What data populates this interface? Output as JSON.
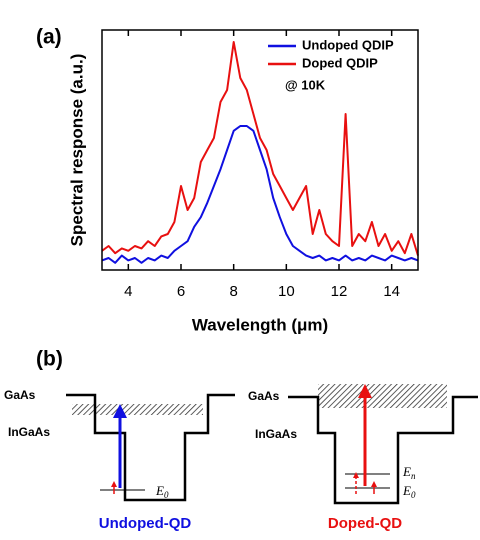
{
  "chart_data": {
    "type": "line",
    "label": "(a)",
    "xlabel": "Wavelength (μm)",
    "ylabel": "Spectral response (a.u.)",
    "annotation": "@ 10K",
    "x": [
      3,
      3.25,
      3.5,
      3.75,
      4,
      4.25,
      4.5,
      4.75,
      5,
      5.25,
      5.5,
      5.75,
      6,
      6.25,
      6.5,
      6.75,
      7,
      7.25,
      7.5,
      7.75,
      8,
      8.25,
      8.5,
      8.75,
      9,
      9.25,
      9.5,
      9.75,
      10,
      10.25,
      10.5,
      10.75,
      11,
      11.25,
      11.5,
      11.75,
      12,
      12.25,
      12.5,
      12.75,
      13,
      13.25,
      13.5,
      13.75,
      14,
      14.25,
      14.5,
      14.75,
      15
    ],
    "series": [
      {
        "name": "Undoped QDIP",
        "color": "#1010e0",
        "values": [
          0.04,
          0.05,
          0.03,
          0.06,
          0.04,
          0.05,
          0.03,
          0.05,
          0.04,
          0.06,
          0.05,
          0.08,
          0.1,
          0.12,
          0.18,
          0.22,
          0.28,
          0.35,
          0.42,
          0.5,
          0.58,
          0.6,
          0.6,
          0.58,
          0.5,
          0.42,
          0.3,
          0.22,
          0.15,
          0.1,
          0.08,
          0.06,
          0.05,
          0.06,
          0.04,
          0.05,
          0.04,
          0.06,
          0.04,
          0.05,
          0.04,
          0.06,
          0.05,
          0.04,
          0.06,
          0.05,
          0.04,
          0.05,
          0.04
        ]
      },
      {
        "name": "Doped QDIP",
        "color": "#e81010",
        "values": [
          0.08,
          0.1,
          0.07,
          0.09,
          0.08,
          0.1,
          0.09,
          0.12,
          0.1,
          0.14,
          0.15,
          0.2,
          0.35,
          0.25,
          0.3,
          0.45,
          0.5,
          0.55,
          0.7,
          0.75,
          0.95,
          0.8,
          0.75,
          0.65,
          0.55,
          0.5,
          0.4,
          0.35,
          0.3,
          0.25,
          0.3,
          0.35,
          0.15,
          0.25,
          0.15,
          0.12,
          0.1,
          0.65,
          0.1,
          0.15,
          0.12,
          0.2,
          0.1,
          0.15,
          0.08,
          0.12,
          0.07,
          0.15,
          0.06
        ]
      }
    ],
    "xlim": [
      3,
      15
    ],
    "ylim": [
      0,
      1
    ],
    "xticks": [
      4,
      6,
      8,
      10,
      12,
      14
    ],
    "grid": false,
    "legend": "upper right"
  },
  "diagram": {
    "label": "(b)",
    "left": {
      "barrier": "GaAs",
      "well": "InGaAs",
      "level": {
        "symbol": "E",
        "subscript": "0"
      },
      "caption": "Undoped-QD"
    },
    "right": {
      "barrier": "GaAs",
      "well": "InGaAs",
      "upper_level": {
        "symbol": "E",
        "subscript": "n"
      },
      "level": {
        "symbol": "E",
        "subscript": "0"
      },
      "caption": "Doped-QD"
    }
  }
}
